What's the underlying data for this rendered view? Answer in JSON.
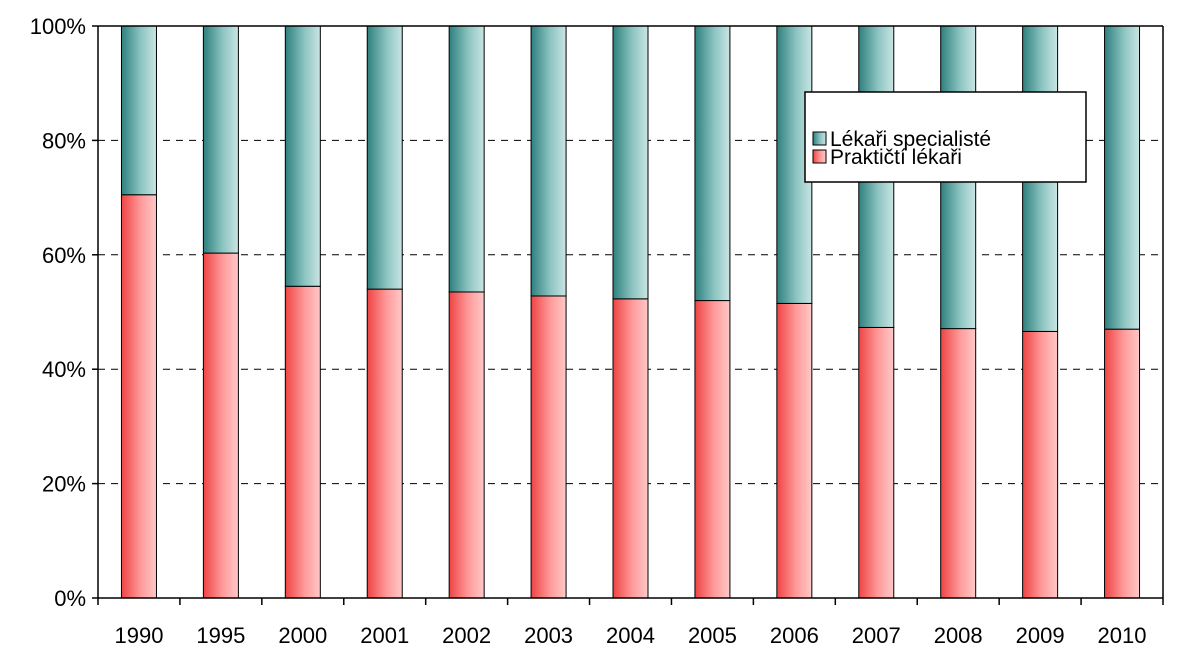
{
  "chart_data": {
    "type": "bar",
    "stacked": true,
    "percent_stacked": true,
    "categories": [
      "1990",
      "1995",
      "2000",
      "2001",
      "2002",
      "2003",
      "2004",
      "2005",
      "2006",
      "2007",
      "2008",
      "2009",
      "2010"
    ],
    "series": [
      {
        "name": "Praktičtí lékaři",
        "color": "#f26b6b",
        "values": [
          70.5,
          60.3,
          54.5,
          54.0,
          53.5,
          52.8,
          52.3,
          52.0,
          51.5,
          47.3,
          47.1,
          46.6,
          47.0
        ]
      },
      {
        "name": "Lékaři specialisté",
        "color": "#5fa6a3",
        "values": [
          29.5,
          39.7,
          45.5,
          46.0,
          46.5,
          47.2,
          47.7,
          48.0,
          48.5,
          52.7,
          52.9,
          53.4,
          53.0
        ]
      }
    ],
    "ylim": [
      0,
      100
    ],
    "y_ticks": [
      "0%",
      "20%",
      "40%",
      "60%",
      "80%",
      "100%"
    ],
    "grid": "horizontal-dashed",
    "legend_position": "top-right",
    "legend_order": [
      "Lékaři specialisté",
      "Praktičtí lékaři"
    ]
  }
}
